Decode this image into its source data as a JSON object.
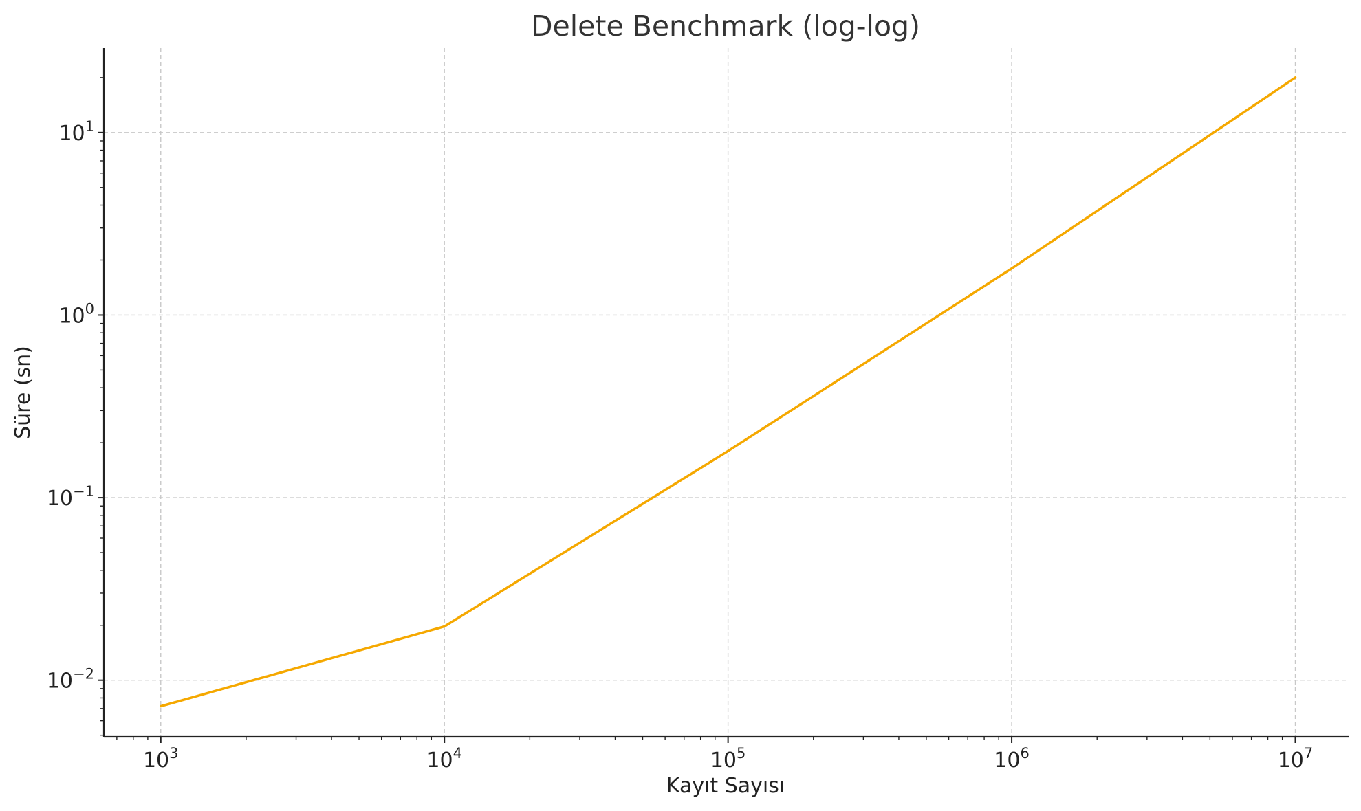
{
  "chart_data": {
    "type": "line",
    "title": "Delete Benchmark (log-log)",
    "xlabel": "Kayıt Sayısı",
    "ylabel": "Süre (sn)",
    "xscale": "log",
    "yscale": "log",
    "xlim": [
      630,
      15500000
    ],
    "ylim": [
      0.0049,
      29
    ],
    "x_ticks": [
      {
        "value": 1000,
        "base": "10",
        "exp": "3"
      },
      {
        "value": 10000,
        "base": "10",
        "exp": "4"
      },
      {
        "value": 100000,
        "base": "10",
        "exp": "5"
      },
      {
        "value": 1000000,
        "base": "10",
        "exp": "6"
      },
      {
        "value": 10000000,
        "base": "10",
        "exp": "7"
      }
    ],
    "y_ticks": [
      {
        "value": 0.01,
        "base": "10",
        "exp": "−2"
      },
      {
        "value": 0.1,
        "base": "10",
        "exp": "−1"
      },
      {
        "value": 1,
        "base": "10",
        "exp": "0"
      },
      {
        "value": 10,
        "base": "10",
        "exp": "1"
      }
    ],
    "grid": true,
    "series": [
      {
        "color": "#f5a800",
        "x": [
          1000,
          10000,
          100000,
          1000000,
          10000000
        ],
        "y": [
          0.0072,
          0.0197,
          0.18,
          1.8,
          20
        ]
      }
    ]
  }
}
